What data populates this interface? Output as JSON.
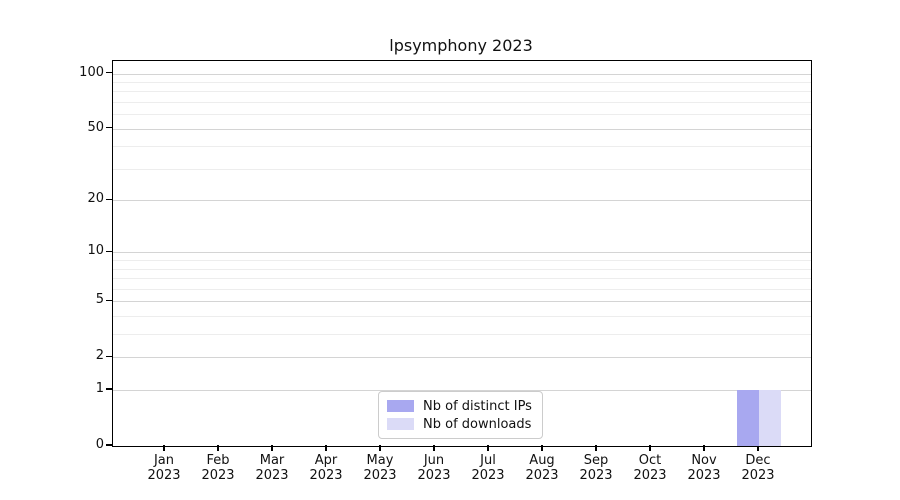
{
  "title": "lpsymphony 2023",
  "chart_data": {
    "type": "bar",
    "title": "lpsymphony 2023",
    "xlabel": "",
    "ylabel": "",
    "scale": "log1p",
    "ylim": [
      0,
      117
    ],
    "grid": true,
    "legend_position": "lower-center",
    "categories": [
      "Jan 2023",
      "Feb 2023",
      "Mar 2023",
      "Apr 2023",
      "May 2023",
      "Jun 2023",
      "Jul 2023",
      "Aug 2023",
      "Sep 2023",
      "Oct 2023",
      "Nov 2023",
      "Dec 2023"
    ],
    "yticks": [
      0,
      1,
      2,
      5,
      10,
      20,
      50,
      100
    ],
    "minor_yticks": [
      3,
      4,
      6,
      7,
      8,
      9,
      30,
      40,
      60,
      70,
      80,
      90
    ],
    "series": [
      {
        "name": "Nb of distinct IPs",
        "color": "#a8a8f0",
        "values": [
          0,
          0,
          0,
          0,
          0,
          0,
          0,
          0,
          0,
          0,
          0,
          1
        ]
      },
      {
        "name": "Nb of downloads",
        "color": "#dbdbf7",
        "values": [
          0,
          0,
          0,
          0,
          0,
          0,
          0,
          0,
          0,
          0,
          0,
          1
        ]
      }
    ]
  }
}
